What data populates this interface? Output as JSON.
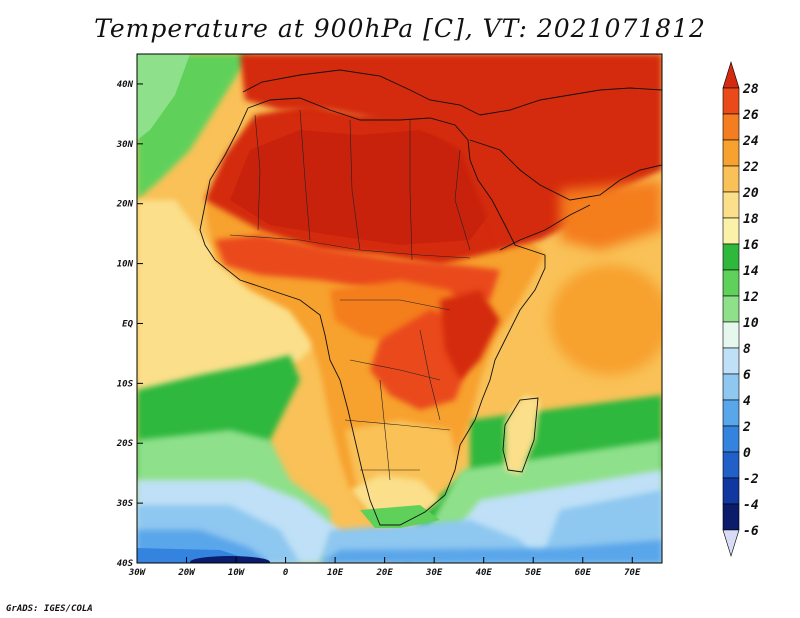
{
  "title": "Temperature at 900hPa [C], VT: 2021071812",
  "credit": "GrADS: IGES/COLA",
  "map": {
    "projection": "latlon",
    "lon_range": [
      -30,
      76
    ],
    "lat_range": [
      -40,
      45
    ],
    "x_ticks": [
      {
        "value": -30,
        "label": "30W"
      },
      {
        "value": -20,
        "label": "20W"
      },
      {
        "value": -10,
        "label": "10W"
      },
      {
        "value": 0,
        "label": "0"
      },
      {
        "value": 10,
        "label": "10E"
      },
      {
        "value": 20,
        "label": "20E"
      },
      {
        "value": 30,
        "label": "30E"
      },
      {
        "value": 40,
        "label": "40E"
      },
      {
        "value": 50,
        "label": "50E"
      },
      {
        "value": 60,
        "label": "60E"
      },
      {
        "value": 70,
        "label": "70E"
      }
    ],
    "y_ticks": [
      {
        "value": 40,
        "label": "40N"
      },
      {
        "value": 30,
        "label": "30N"
      },
      {
        "value": 20,
        "label": "20N"
      },
      {
        "value": 10,
        "label": "10N"
      },
      {
        "value": 0,
        "label": "EQ"
      },
      {
        "value": -10,
        "label": "10S"
      },
      {
        "value": -20,
        "label": "20S"
      },
      {
        "value": -30,
        "label": "30S"
      },
      {
        "value": -40,
        "label": "40S"
      }
    ]
  },
  "colorbar": {
    "position": "right",
    "levels": [
      28,
      26,
      24,
      22,
      20,
      18,
      16,
      14,
      12,
      10,
      8,
      6,
      4,
      2,
      0,
      -2,
      -4,
      -6
    ],
    "labels": [
      "28",
      "26",
      "24",
      "22",
      "20",
      "18",
      "16",
      "14",
      "12",
      "10",
      "8",
      "6",
      "4",
      "2",
      "0",
      "-2",
      "-4",
      "-6"
    ],
    "colors_top_to_bottom": [
      "#d42a10",
      "#ea4a1a",
      "#f47d1f",
      "#f7a12f",
      "#f9c157",
      "#fbdf8a",
      "#f9f2a8",
      "#2eb83c",
      "#5fd15a",
      "#8ee08a",
      "#e6f8ee",
      "#bfe0f7",
      "#8ec7f0",
      "#5aa6ea",
      "#3484df",
      "#2060c8",
      "#1038a0",
      "#0a1c6a",
      "#d8dcf5"
    ]
  }
}
